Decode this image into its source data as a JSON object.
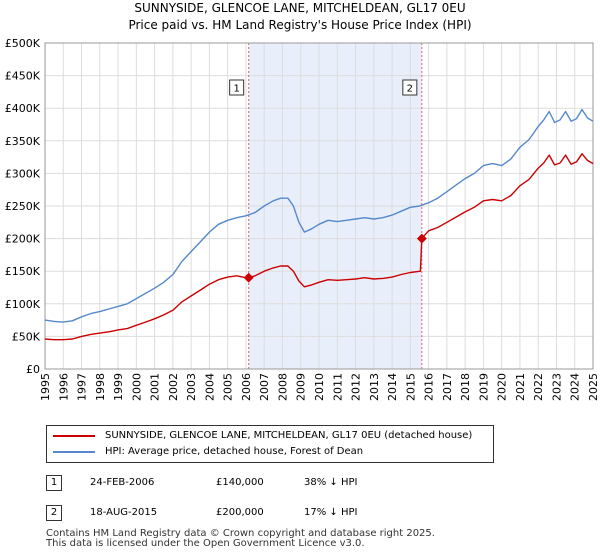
{
  "title_line1": "SUNNYSIDE, GLENCOE LANE, MITCHELDEAN, GL17 0EU",
  "title_line2": "Price paid vs. HM Land Registry's House Price Index (HPI)",
  "colors": {
    "property": "#cc0000",
    "hpi": "#5588cc",
    "shade": "#e8eefa",
    "grid": "#dddddd",
    "vline": "#dd6666"
  },
  "legend": {
    "property": "SUNNYSIDE, GLENCOE LANE, MITCHELDEAN, GL17 0EU (detached house)",
    "hpi": "HPI: Average price, detached house, Forest of Dean"
  },
  "transactions": [
    {
      "num": "1",
      "date": "24-FEB-2006",
      "price": "£140,000",
      "hpi": "38% ↓ HPI"
    },
    {
      "num": "2",
      "date": "18-AUG-2015",
      "price": "£200,000",
      "hpi": "17% ↓ HPI"
    }
  ],
  "footer": {
    "line1": "Contains HM Land Registry data © Crown copyright and database right 2025.",
    "line2": "This data is licensed under the Open Government Licence v3.0."
  },
  "chart_data": {
    "type": "line",
    "ylim": [
      0,
      500000
    ],
    "xlim": [
      1995,
      2025
    ],
    "ytick_values": [
      0,
      50000,
      100000,
      150000,
      200000,
      250000,
      300000,
      350000,
      400000,
      450000,
      500000
    ],
    "ytick_labels": [
      "£0",
      "£50K",
      "£100K",
      "£150K",
      "£200K",
      "£250K",
      "£300K",
      "£350K",
      "£400K",
      "£450K",
      "£500K"
    ],
    "xtick_values": [
      1995,
      1996,
      1997,
      1998,
      1999,
      2000,
      2001,
      2002,
      2003,
      2004,
      2005,
      2006,
      2007,
      2008,
      2009,
      2010,
      2011,
      2012,
      2013,
      2014,
      2015,
      2016,
      2017,
      2018,
      2019,
      2020,
      2021,
      2022,
      2023,
      2024,
      2025
    ],
    "xtick_labels": [
      "1995",
      "1996",
      "1997",
      "1998",
      "1999",
      "2000",
      "2001",
      "2002",
      "2003",
      "2004",
      "2005",
      "2006",
      "2007",
      "2008",
      "2009",
      "2010",
      "2011",
      "2012",
      "2013",
      "2014",
      "2015",
      "2016",
      "2017",
      "2018",
      "2019",
      "2020",
      "2021",
      "2022",
      "2023",
      "2024",
      "2025"
    ],
    "shade_range": [
      2006.15,
      2015.63
    ],
    "markers": [
      {
        "label": "1",
        "x": 2006.15,
        "y": 140000
      },
      {
        "label": "2",
        "x": 2015.63,
        "y": 200000
      }
    ],
    "series": [
      {
        "name": "HPI: Average price, detached house, Forest of Dean",
        "x": [
          1995,
          1995.5,
          1996,
          1996.5,
          1997,
          1997.5,
          1998,
          1998.5,
          1999,
          1999.5,
          2000,
          2000.5,
          2001,
          2001.5,
          2002,
          2002.5,
          2003,
          2003.5,
          2004,
          2004.5,
          2005,
          2005.5,
          2006,
          2006.5,
          2007,
          2007.5,
          2007.9,
          2008.3,
          2008.6,
          2008.9,
          2009.2,
          2009.6,
          2010,
          2010.5,
          2011,
          2011.5,
          2012,
          2012.5,
          2013,
          2013.5,
          2014,
          2014.5,
          2015,
          2015.5,
          2016,
          2016.5,
          2017,
          2017.5,
          2018,
          2018.5,
          2019,
          2019.5,
          2020,
          2020.5,
          2021,
          2021.5,
          2022,
          2022.3,
          2022.6,
          2022.9,
          2023.2,
          2023.5,
          2023.8,
          2024.1,
          2024.4,
          2024.7,
          2025
        ],
        "values": [
          75000,
          73000,
          72000,
          74000,
          80000,
          85000,
          88000,
          92000,
          96000,
          100000,
          108000,
          116000,
          124000,
          133000,
          145000,
          165000,
          180000,
          195000,
          210000,
          222000,
          228000,
          232000,
          235000,
          240000,
          250000,
          258000,
          262000,
          262000,
          250000,
          225000,
          210000,
          215000,
          222000,
          228000,
          226000,
          228000,
          230000,
          232000,
          230000,
          232000,
          236000,
          242000,
          248000,
          250000,
          255000,
          262000,
          272000,
          282000,
          292000,
          300000,
          312000,
          315000,
          312000,
          322000,
          340000,
          352000,
          372000,
          382000,
          395000,
          378000,
          382000,
          395000,
          380000,
          384000,
          398000,
          385000,
          380000
        ]
      },
      {
        "name": "SUNNYSIDE, GLENCOE LANE, MITCHELDEAN, GL17 0EU (detached house)",
        "x": [
          1995,
          1995.5,
          1996,
          1996.5,
          1997,
          1997.5,
          1998,
          1998.5,
          1999,
          1999.5,
          2000,
          2000.5,
          2001,
          2001.5,
          2002,
          2002.5,
          2003,
          2003.5,
          2004,
          2004.5,
          2005,
          2005.5,
          2006,
          2006.15,
          2006.5,
          2007,
          2007.5,
          2007.9,
          2008.3,
          2008.6,
          2008.9,
          2009.2,
          2009.6,
          2010,
          2010.5,
          2011,
          2011.5,
          2012,
          2012.5,
          2013,
          2013.5,
          2014,
          2014.5,
          2015,
          2015.55,
          2015.63,
          2016,
          2016.5,
          2017,
          2017.5,
          2018,
          2018.5,
          2019,
          2019.5,
          2020,
          2020.5,
          2021,
          2021.5,
          2022,
          2022.3,
          2022.6,
          2022.9,
          2023.2,
          2023.5,
          2023.8,
          2024.1,
          2024.4,
          2024.7,
          2025
        ],
        "values": [
          46000,
          45000,
          45000,
          46000,
          50000,
          53000,
          55000,
          57000,
          60000,
          62000,
          67000,
          72000,
          77000,
          83000,
          90000,
          103000,
          112000,
          121000,
          130000,
          137000,
          141000,
          143000,
          140000,
          140000,
          143000,
          150000,
          155000,
          158000,
          158000,
          150000,
          135000,
          126000,
          129000,
          133000,
          137000,
          136000,
          137000,
          138000,
          140000,
          138000,
          139000,
          141000,
          145000,
          148000,
          150000,
          200000,
          212000,
          217000,
          225000,
          233000,
          241000,
          248000,
          258000,
          260000,
          258000,
          266000,
          281000,
          291000,
          308000,
          316000,
          328000,
          313000,
          316000,
          328000,
          314000,
          318000,
          330000,
          320000,
          315000
        ]
      }
    ]
  }
}
